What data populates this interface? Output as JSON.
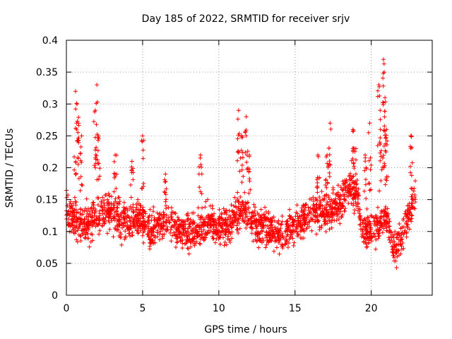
{
  "chart_data": {
    "type": "scatter",
    "title": "Day 185 of 2022, SRMTID for receiver srjv",
    "xlabel": "GPS time / hours",
    "ylabel": "SRMTID / TECUs",
    "xlim": [
      0,
      24
    ],
    "ylim": [
      0,
      0.4
    ],
    "xticks": [
      0,
      5,
      10,
      15,
      20
    ],
    "xtick_labels": [
      "0",
      "5",
      "10",
      "15",
      "20"
    ],
    "yticks": [
      0,
      0.05,
      0.1,
      0.15,
      0.2,
      0.25,
      0.3,
      0.35,
      0.4
    ],
    "ytick_labels": [
      "0",
      "0.05",
      "0.1",
      "0.15",
      "0.2",
      "0.25",
      "0.3",
      "0.35",
      "0.4"
    ],
    "grid": true,
    "marker": "plus",
    "color": "#ff0000",
    "x_end": 22.9,
    "trend": [
      [
        0.0,
        0.14
      ],
      [
        0.5,
        0.12
      ],
      [
        1.0,
        0.11
      ],
      [
        1.5,
        0.11
      ],
      [
        2.0,
        0.13
      ],
      [
        2.5,
        0.13
      ],
      [
        3.0,
        0.13
      ],
      [
        3.5,
        0.12
      ],
      [
        4.0,
        0.11
      ],
      [
        4.5,
        0.12
      ],
      [
        5.0,
        0.12
      ],
      [
        5.5,
        0.1
      ],
      [
        6.0,
        0.11
      ],
      [
        6.5,
        0.12
      ],
      [
        7.0,
        0.11
      ],
      [
        7.5,
        0.1
      ],
      [
        8.0,
        0.1
      ],
      [
        8.5,
        0.1
      ],
      [
        9.0,
        0.11
      ],
      [
        9.5,
        0.11
      ],
      [
        10.0,
        0.11
      ],
      [
        10.5,
        0.11
      ],
      [
        11.0,
        0.12
      ],
      [
        11.5,
        0.14
      ],
      [
        12.0,
        0.12
      ],
      [
        12.5,
        0.11
      ],
      [
        13.0,
        0.11
      ],
      [
        13.5,
        0.1
      ],
      [
        14.0,
        0.09
      ],
      [
        14.5,
        0.1
      ],
      [
        15.0,
        0.11
      ],
      [
        15.5,
        0.12
      ],
      [
        16.0,
        0.13
      ],
      [
        16.5,
        0.13
      ],
      [
        17.0,
        0.13
      ],
      [
        17.5,
        0.14
      ],
      [
        18.0,
        0.14
      ],
      [
        18.5,
        0.17
      ],
      [
        19.0,
        0.16
      ],
      [
        19.5,
        0.1
      ],
      [
        20.0,
        0.1
      ],
      [
        20.5,
        0.11
      ],
      [
        21.0,
        0.12
      ],
      [
        21.5,
        0.07
      ],
      [
        22.0,
        0.09
      ],
      [
        22.5,
        0.13
      ],
      [
        22.9,
        0.15
      ]
    ],
    "spikes": [
      [
        0.7,
        0.3
      ],
      [
        0.6,
        0.32
      ],
      [
        0.8,
        0.27
      ],
      [
        1.0,
        0.25
      ],
      [
        2.0,
        0.33
      ],
      [
        1.9,
        0.29
      ],
      [
        2.1,
        0.25
      ],
      [
        3.2,
        0.22
      ],
      [
        4.3,
        0.21
      ],
      [
        5.0,
        0.25
      ],
      [
        6.5,
        0.19
      ],
      [
        8.8,
        0.22
      ],
      [
        11.3,
        0.29
      ],
      [
        11.5,
        0.25
      ],
      [
        11.8,
        0.28
      ],
      [
        12.0,
        0.22
      ],
      [
        16.5,
        0.22
      ],
      [
        17.1,
        0.22
      ],
      [
        17.3,
        0.27
      ],
      [
        18.8,
        0.26
      ],
      [
        18.9,
        0.23
      ],
      [
        19.6,
        0.22
      ],
      [
        19.9,
        0.27
      ],
      [
        20.5,
        0.33
      ],
      [
        20.6,
        0.26
      ],
      [
        20.8,
        0.37
      ],
      [
        20.85,
        0.35
      ],
      [
        20.9,
        0.31
      ],
      [
        21.0,
        0.26
      ],
      [
        22.6,
        0.25
      ]
    ]
  }
}
